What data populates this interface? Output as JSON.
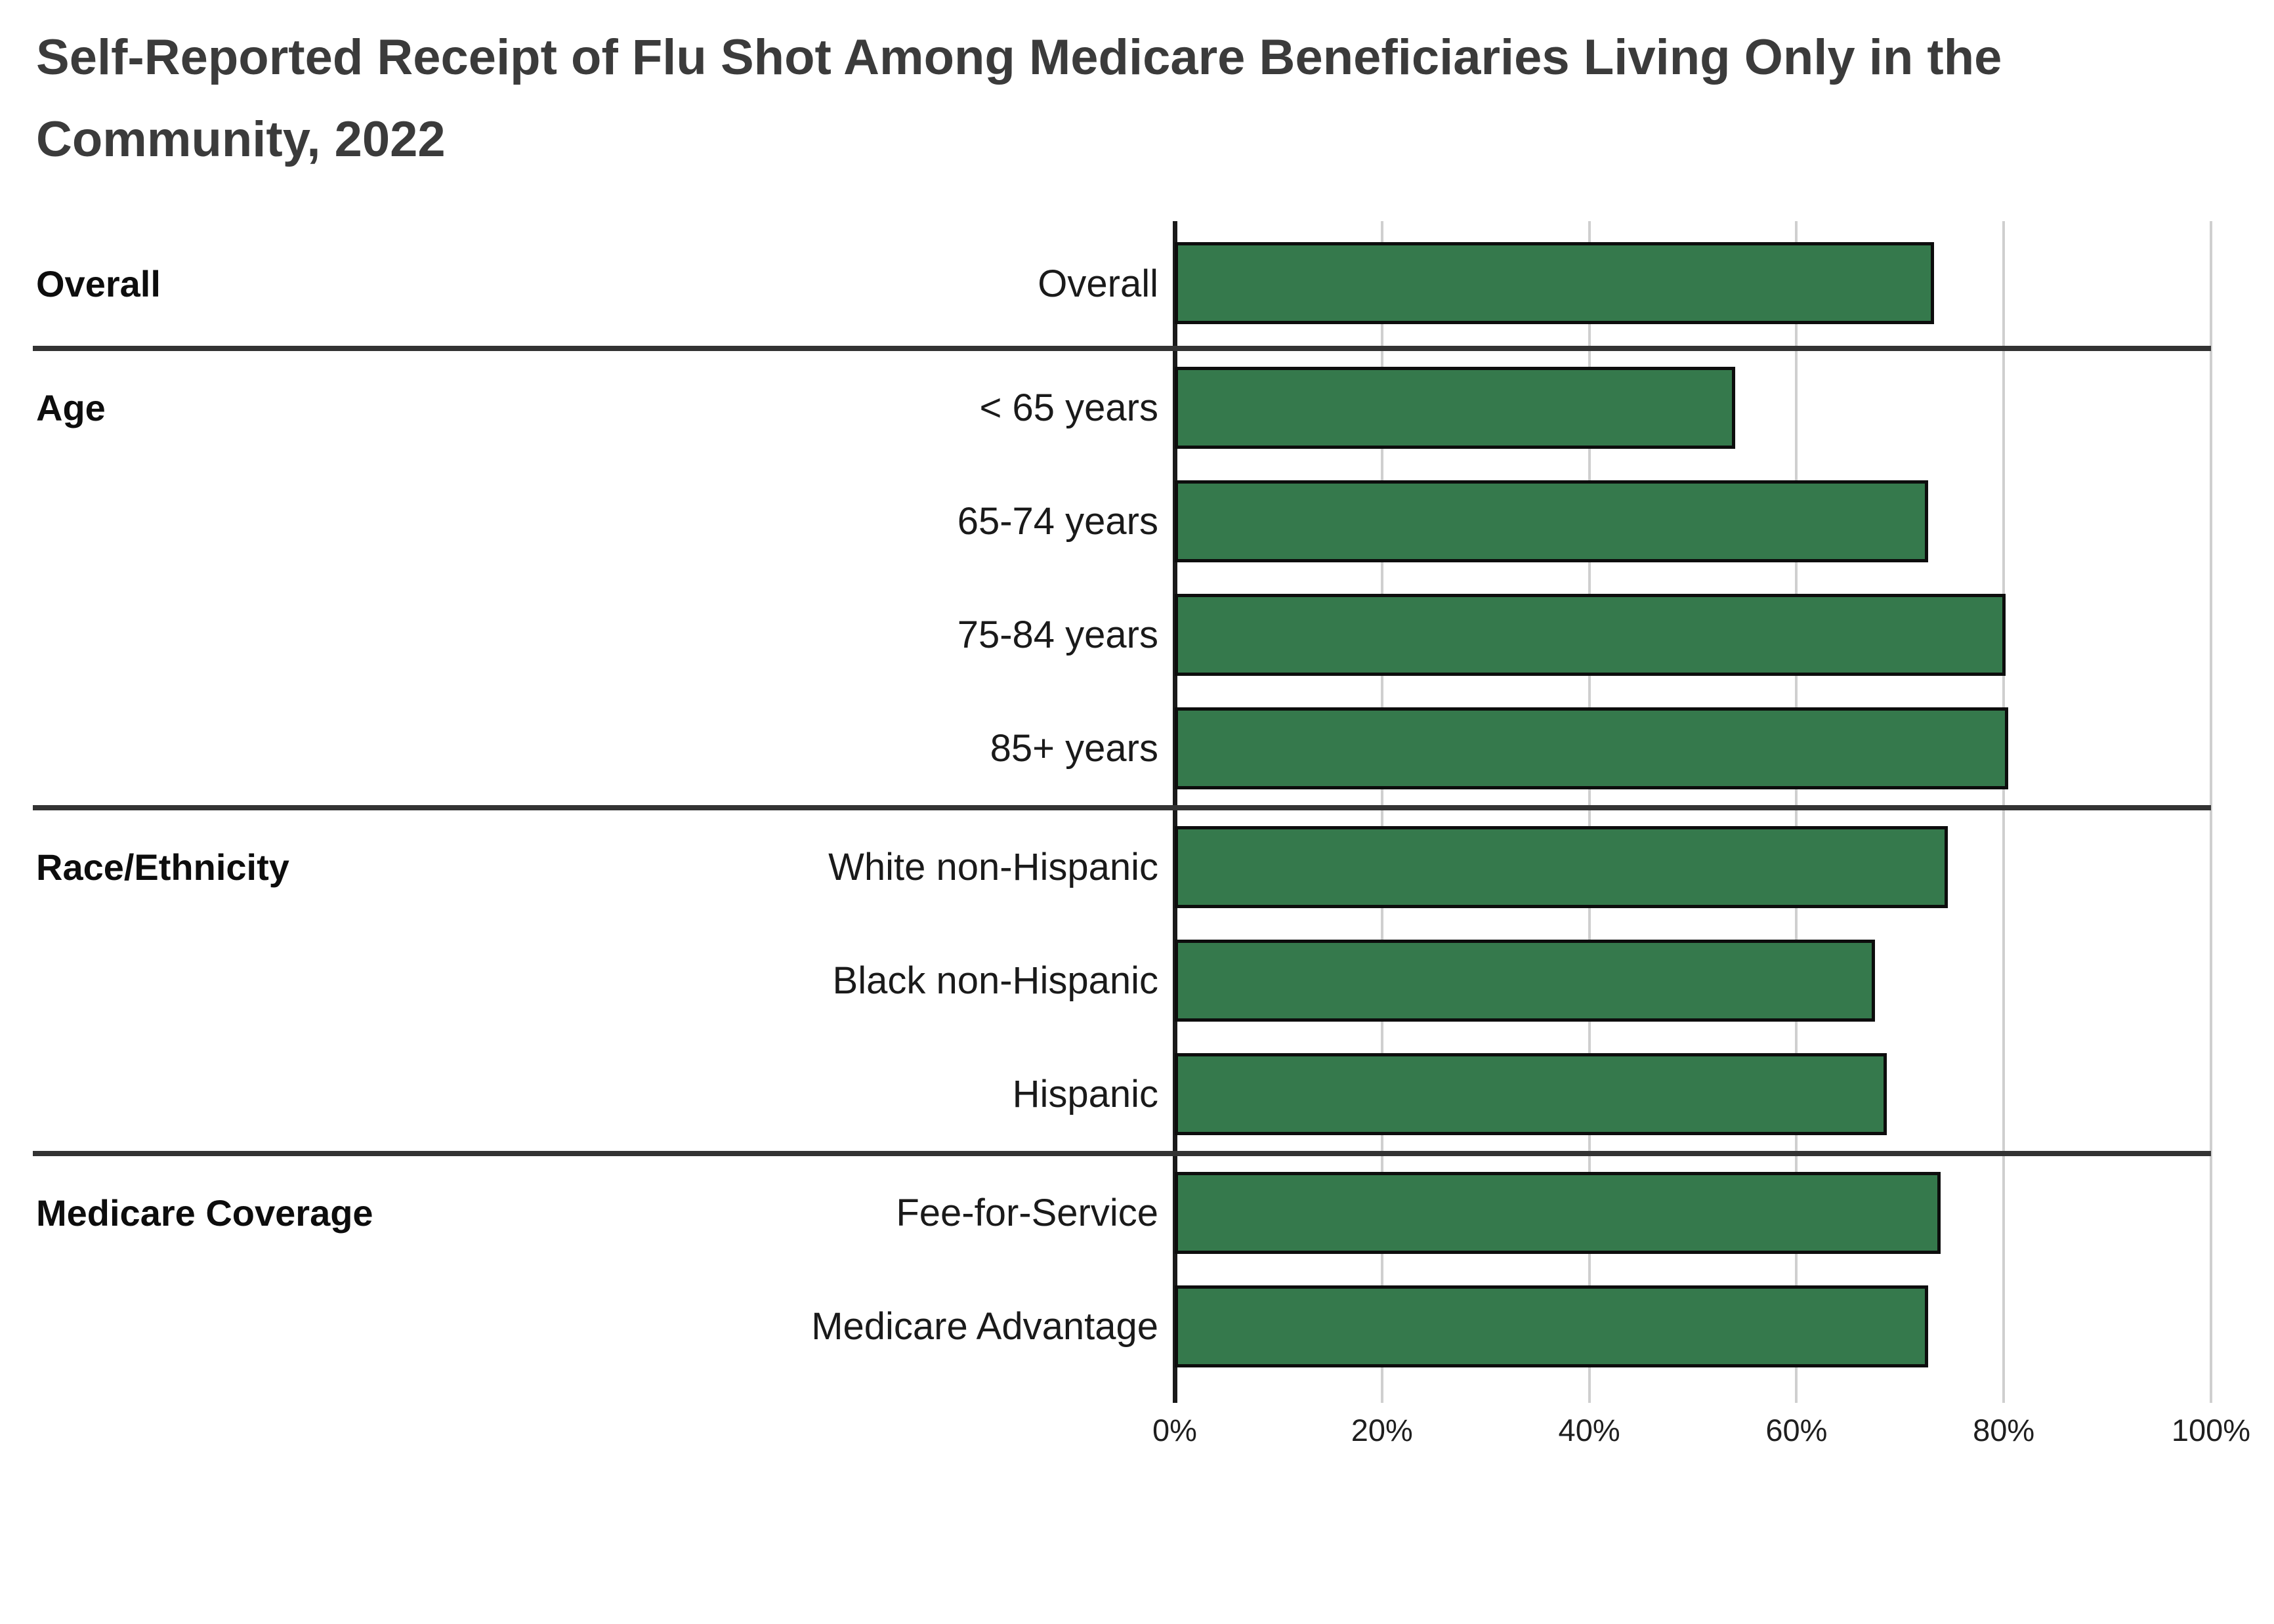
{
  "title_line1": "Self-Reported Receipt of Flu Shot Among Medicare Beneficiaries Living Only in the",
  "title_line2": "Community, 2022",
  "chart_data": {
    "type": "bar",
    "orientation": "horizontal",
    "title": "Self-Reported Receipt of Flu Shot Among Medicare Beneficiaries Living Only in the Community, 2022",
    "xlabel": "",
    "ylabel": "",
    "unit": "%",
    "xlim": [
      0,
      100
    ],
    "grid": true,
    "legend": false,
    "bar_color": "#35794c",
    "bar_border_color": "#0d0d0d",
    "gridline_color": "#cfcfcf",
    "axis_color": "#1a1a1a",
    "x_axis": {
      "ticks": [
        "0%",
        "20%",
        "40%",
        "60%",
        "80%",
        "100%"
      ],
      "values": [
        0,
        20,
        40,
        60,
        80,
        100
      ]
    },
    "categories": [
      "Overall",
      "< 65 years",
      "65-74 years",
      "75-84 years",
      "85+ years",
      "White non-Hispanic",
      "Black non-Hispanic",
      "Hispanic",
      "Fee-for-Service",
      "Medicare Advantage"
    ],
    "values": [
      73.3,
      54.1,
      72.7,
      80.2,
      80.4,
      74.6,
      67.6,
      68.7,
      73.9,
      72.7
    ],
    "groups": [
      {
        "label": "Overall",
        "bars": [
          {
            "label": "Overall",
            "value": 73.3
          }
        ]
      },
      {
        "label": "Age",
        "bars": [
          {
            "label": "< 65 years",
            "value": 54.1
          },
          {
            "label": "65-74 years",
            "value": 72.7
          },
          {
            "label": "75-84 years",
            "value": 80.2
          },
          {
            "label": "85+ years",
            "value": 80.4
          }
        ]
      },
      {
        "label": "Race/Ethnicity",
        "bars": [
          {
            "label": "White non-Hispanic",
            "value": 74.6
          },
          {
            "label": "Black non-Hispanic",
            "value": 67.6
          },
          {
            "label": "Hispanic",
            "value": 68.7
          }
        ]
      },
      {
        "label": "Medicare Coverage",
        "bars": [
          {
            "label": "Fee-for-Service",
            "value": 73.9
          },
          {
            "label": "Medicare Advantage",
            "value": 72.7
          }
        ]
      }
    ]
  }
}
